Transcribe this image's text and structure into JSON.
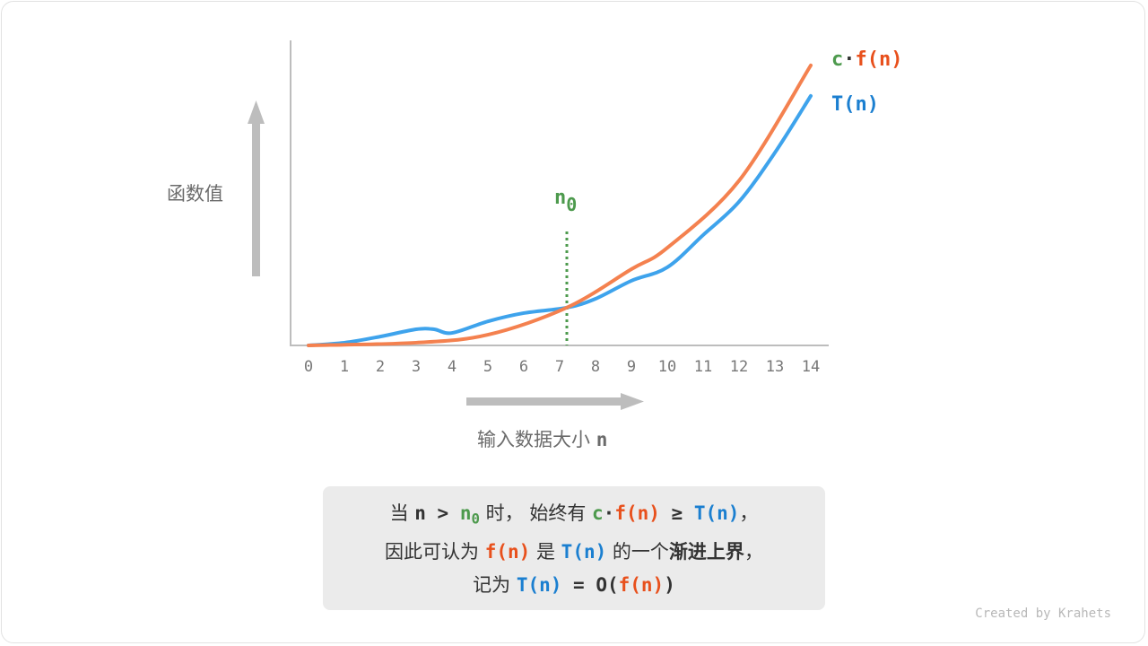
{
  "chart_data": {
    "type": "line",
    "x_ticks": [
      0,
      1,
      2,
      3,
      4,
      5,
      6,
      7,
      8,
      9,
      10,
      11,
      12,
      13,
      14
    ],
    "xlim": [
      0,
      14
    ],
    "ylim": [
      0,
      100
    ],
    "xlabel": "输入数据大小",
    "xlabel_var": "n",
    "ylabel": "函数值",
    "grid": false,
    "series": [
      {
        "name_prefix": "c",
        "name_dot": "·",
        "name": "f(n)",
        "color": "#f4814f",
        "label_color": "#e8501c",
        "x": [
          0,
          3,
          5,
          7.2,
          9,
          10,
          12,
          14
        ],
        "y": [
          0,
          0.9,
          3.5,
          12.4,
          25,
          32,
          54,
          91.8
        ]
      },
      {
        "name": "T(n)",
        "color": "#3ea3ec",
        "label_color": "#1b7fd0",
        "x": [
          0,
          1,
          2,
          3,
          3.5,
          4,
          5,
          6,
          7.2,
          8,
          9,
          10,
          11,
          12,
          13,
          14
        ],
        "y": [
          0,
          0.9,
          2.9,
          5.3,
          5.3,
          4.1,
          7.9,
          10.6,
          12.4,
          15.3,
          21.2,
          25.6,
          36.2,
          47.1,
          63.2,
          81.8
        ]
      }
    ],
    "threshold": {
      "label": "n",
      "sub": "0",
      "x": 7.2,
      "color": "#4d9a4d"
    }
  },
  "text": {
    "l1_a": "当 ",
    "l1_n": "n",
    "l1_gt": " > ",
    "l1_n0": "n",
    "l1_n0sub": "0",
    "l1_b": " 时， 始终有 ",
    "l1_c": "c",
    "l1_dot": "·",
    "l1_fn": "f(n)",
    "l1_ge": " ≥ ",
    "l1_tn": "T(n)",
    "l1_end": "，",
    "l2_a": "因此可认为 ",
    "l2_fn": "f(n)",
    "l2_b": " 是 ",
    "l2_tn": "T(n)",
    "l2_c": " 的一个",
    "l2_bold": "渐进上界",
    "l2_end": "，",
    "l3_a": "记为 ",
    "l3_tn": "T(n)",
    "l3_eq": " = ",
    "l3_o": "O(",
    "l3_fn": "f(n)",
    "l3_close": ")"
  },
  "credit": "Created by Krahets"
}
